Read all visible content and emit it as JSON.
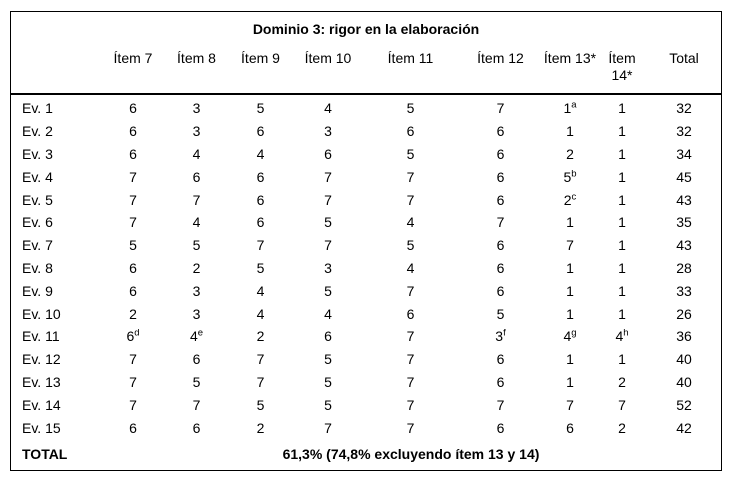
{
  "table": {
    "title": "Dominio 3: rigor en la elaboración",
    "columns": [
      "",
      "Ítem 7",
      "Ítem 8",
      "Ítem 9",
      "Ítem 10",
      "Ítem 11",
      "Ítem 12",
      "Ítem 13*",
      "Ítem 14*",
      "Total"
    ],
    "rows": [
      {
        "label": "Ev. 1",
        "values": [
          "6",
          "3",
          "5",
          "4",
          "5",
          "7",
          "1^a",
          "1",
          "32"
        ]
      },
      {
        "label": "Ev. 2",
        "values": [
          "6",
          "3",
          "6",
          "3",
          "6",
          "6",
          "1",
          "1",
          "32"
        ]
      },
      {
        "label": "Ev. 3",
        "values": [
          "6",
          "4",
          "4",
          "6",
          "5",
          "6",
          "2",
          "1",
          "34"
        ]
      },
      {
        "label": "Ev. 4",
        "values": [
          "7",
          "6",
          "6",
          "7",
          "7",
          "6",
          "5^b",
          "1",
          "45"
        ]
      },
      {
        "label": "Ev. 5",
        "values": [
          "7",
          "7",
          "6",
          "7",
          "7",
          "6",
          "2^c",
          "1",
          "43"
        ]
      },
      {
        "label": "Ev. 6",
        "values": [
          "7",
          "4",
          "6",
          "5",
          "4",
          "7",
          "1",
          "1",
          "35"
        ]
      },
      {
        "label": "Ev. 7",
        "values": [
          "5",
          "5",
          "7",
          "7",
          "5",
          "6",
          "7",
          "1",
          "43"
        ]
      },
      {
        "label": "Ev. 8",
        "values": [
          "6",
          "2",
          "5",
          "3",
          "4",
          "6",
          "1",
          "1",
          "28"
        ]
      },
      {
        "label": "Ev. 9",
        "values": [
          "6",
          "3",
          "4",
          "5",
          "7",
          "6",
          "1",
          "1",
          "33"
        ]
      },
      {
        "label": "Ev. 10",
        "values": [
          "2",
          "3",
          "4",
          "4",
          "6",
          "5",
          "1",
          "1",
          "26"
        ]
      },
      {
        "label": "Ev. 11",
        "values": [
          "6^d",
          "4^e",
          "2",
          "6",
          "7",
          "3^f",
          "4^g",
          "4^h",
          "36"
        ]
      },
      {
        "label": "Ev. 12",
        "values": [
          "7",
          "6",
          "7",
          "5",
          "7",
          "6",
          "1",
          "1",
          "40"
        ]
      },
      {
        "label": "Ev. 13",
        "values": [
          "7",
          "5",
          "7",
          "5",
          "7",
          "6",
          "1",
          "2",
          "40"
        ]
      },
      {
        "label": "Ev. 14",
        "values": [
          "7",
          "7",
          "5",
          "5",
          "7",
          "7",
          "7",
          "7",
          "52"
        ]
      },
      {
        "label": "Ev. 15",
        "values": [
          "6",
          "6",
          "2",
          "7",
          "7",
          "6",
          "6",
          "2",
          "42"
        ]
      }
    ],
    "footer": {
      "label": "TOTAL",
      "value": "61,3% (74,8% excluyendo ítem 13 y 14)"
    },
    "colors": {
      "border": "#000000",
      "text": "#000000",
      "background": "#ffffff"
    }
  }
}
